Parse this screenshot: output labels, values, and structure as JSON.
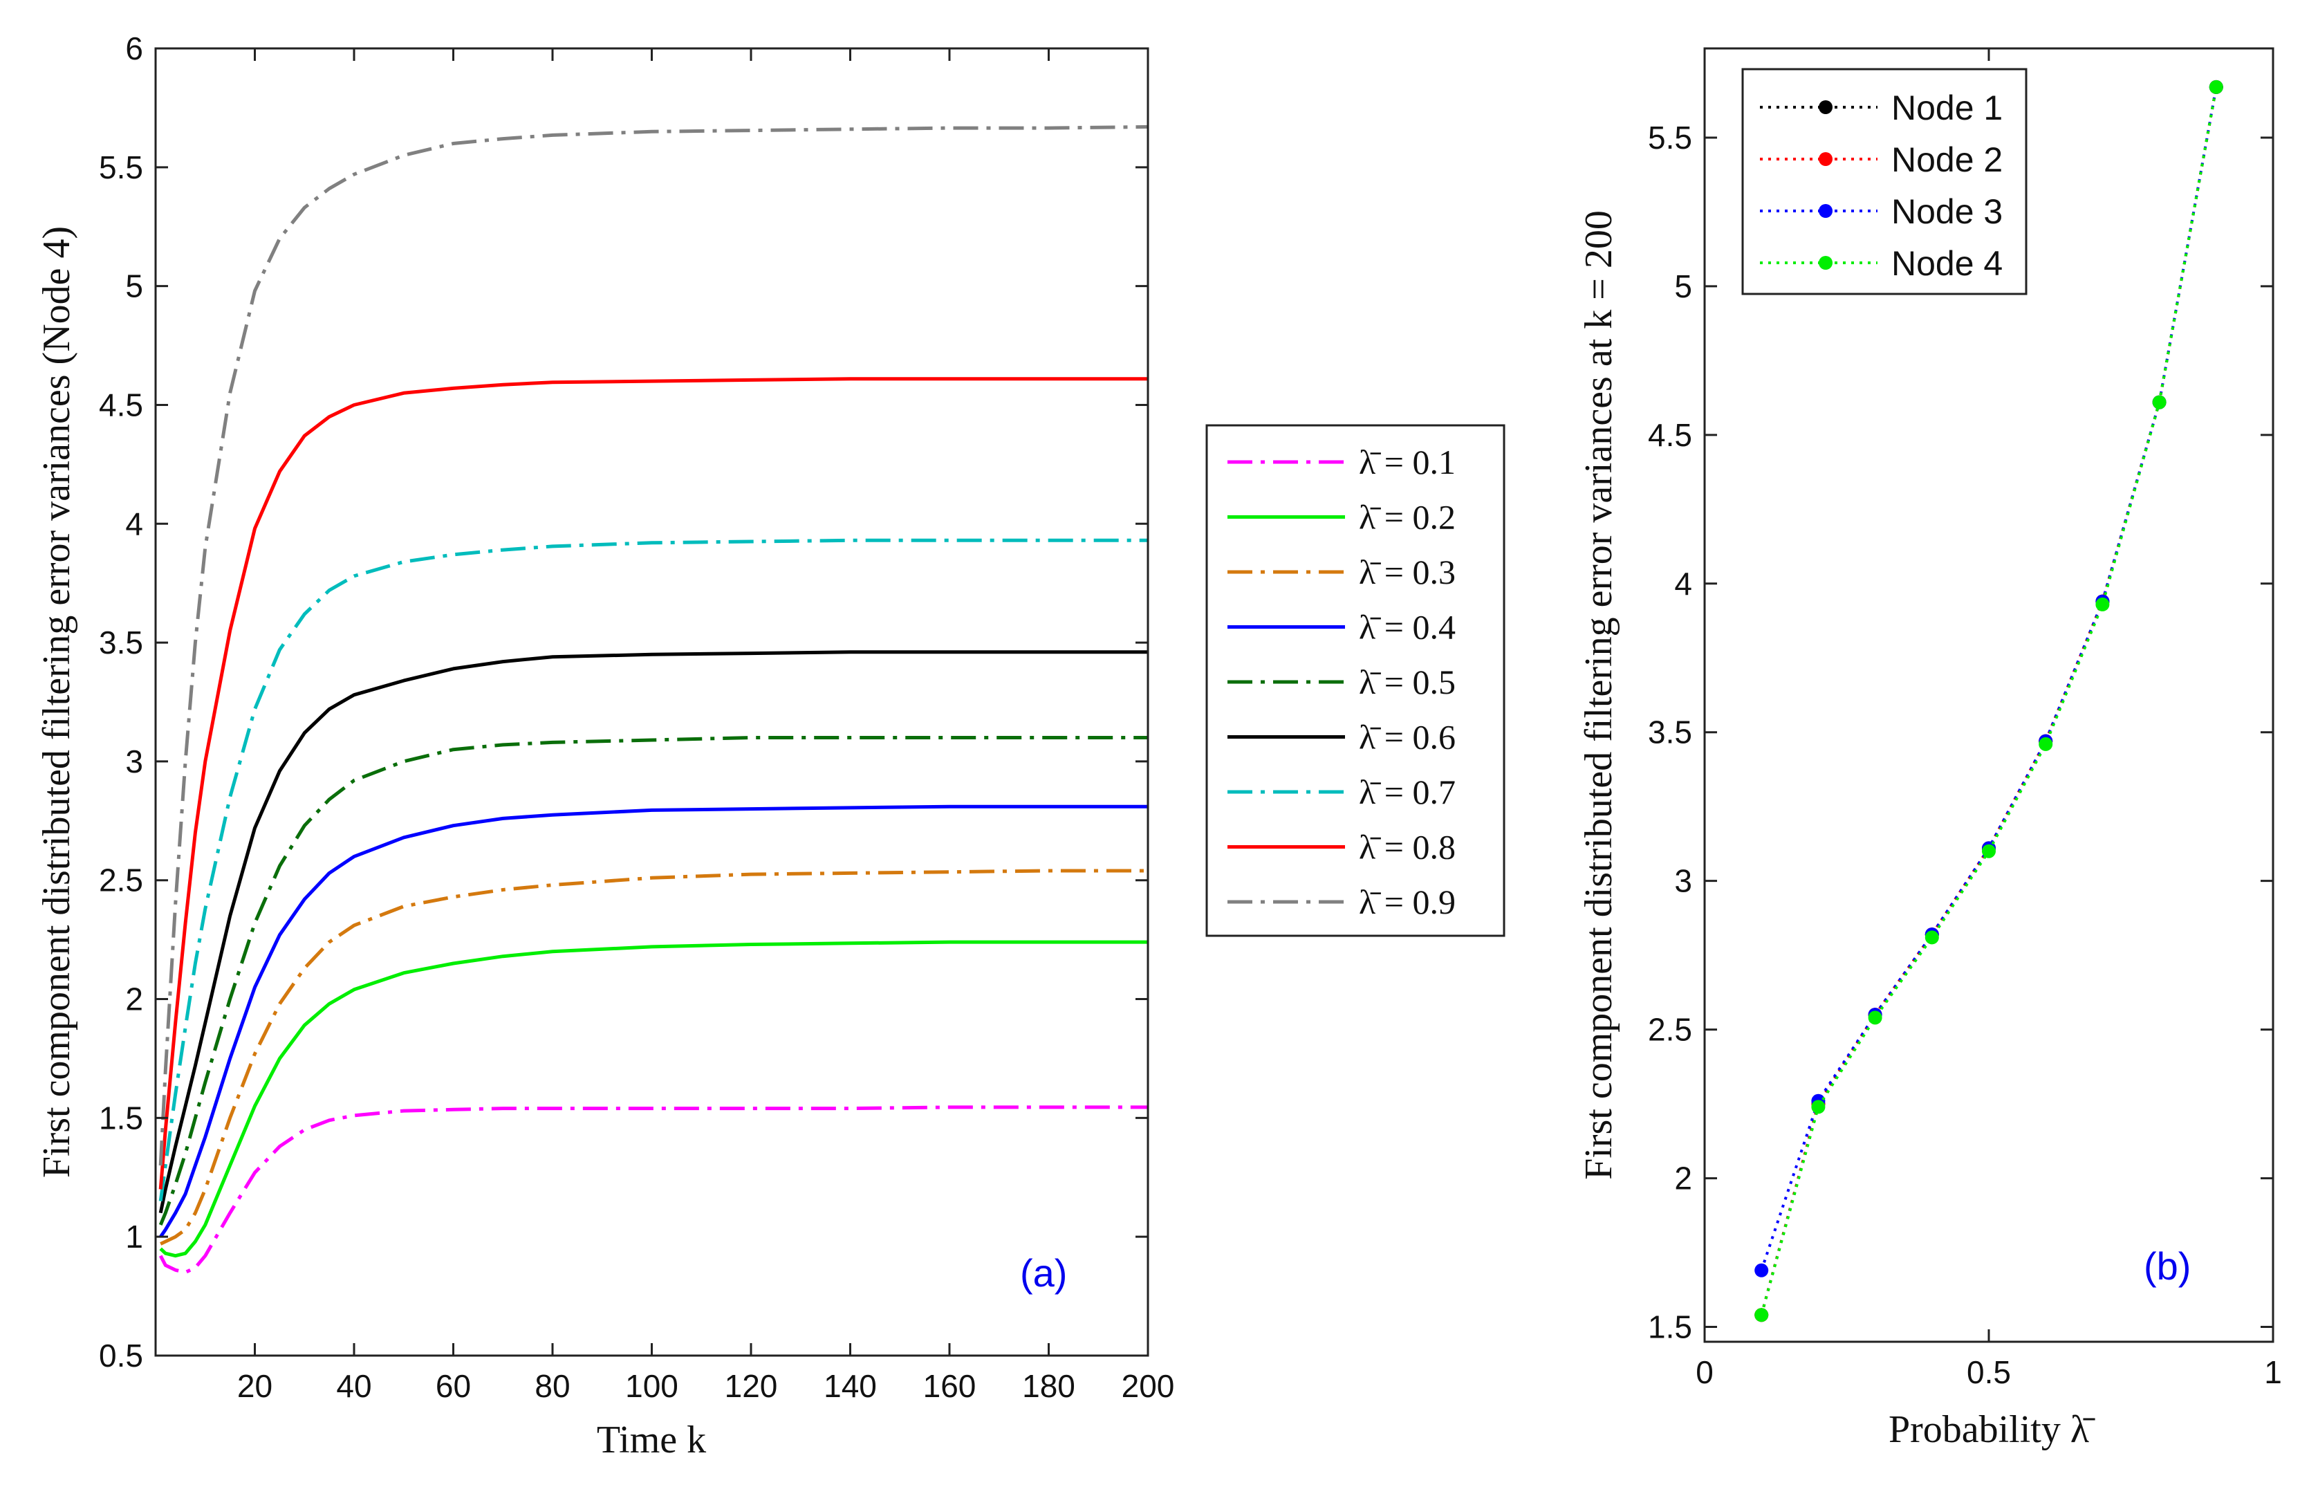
{
  "chart_data": [
    {
      "type": "line",
      "panel_label": "(a)",
      "xlabel": "Time k",
      "ylabel": "First component distributed filtering error variances (Node 4)",
      "xlim": [
        0,
        200
      ],
      "ylim": [
        0.5,
        6
      ],
      "x_ticks": [
        20,
        40,
        60,
        80,
        100,
        120,
        140,
        160,
        180,
        200
      ],
      "y_ticks": [
        0.5,
        1,
        1.5,
        2,
        2.5,
        3,
        3.5,
        4,
        4.5,
        5,
        5.5,
        6
      ],
      "grid": false,
      "legend_position": "outside-right",
      "x": [
        1,
        2,
        4,
        6,
        8,
        10,
        15,
        20,
        25,
        30,
        35,
        40,
        50,
        60,
        70,
        80,
        100,
        120,
        140,
        160,
        180,
        200
      ],
      "series": [
        {
          "name": "λ̄ = 0.1",
          "color": "#ff00ff",
          "dash": "dashdot",
          "values": [
            0.92,
            0.88,
            0.86,
            0.85,
            0.87,
            0.92,
            1.1,
            1.27,
            1.38,
            1.45,
            1.49,
            1.51,
            1.53,
            1.535,
            1.54,
            1.54,
            1.54,
            1.54,
            1.54,
            1.545,
            1.545,
            1.545
          ]
        },
        {
          "name": "λ̄ = 0.2",
          "color": "#00ee00",
          "dash": "solid",
          "values": [
            0.95,
            0.93,
            0.92,
            0.93,
            0.98,
            1.05,
            1.3,
            1.55,
            1.75,
            1.89,
            1.98,
            2.04,
            2.11,
            2.15,
            2.18,
            2.2,
            2.22,
            2.23,
            2.235,
            2.24,
            2.24,
            2.24
          ]
        },
        {
          "name": "λ̄ = 0.3",
          "color": "#d4790e",
          "dash": "dashdot",
          "values": [
            0.97,
            0.98,
            1.0,
            1.03,
            1.1,
            1.2,
            1.5,
            1.77,
            1.98,
            2.13,
            2.24,
            2.31,
            2.39,
            2.43,
            2.46,
            2.48,
            2.51,
            2.525,
            2.53,
            2.535,
            2.54,
            2.54
          ]
        },
        {
          "name": "λ̄ = 0.4",
          "color": "#0000ff",
          "dash": "solid",
          "values": [
            1.0,
            1.03,
            1.1,
            1.18,
            1.3,
            1.42,
            1.75,
            2.05,
            2.27,
            2.42,
            2.53,
            2.6,
            2.68,
            2.73,
            2.76,
            2.775,
            2.795,
            2.8,
            2.805,
            2.81,
            2.81,
            2.81
          ]
        },
        {
          "name": "λ̄ = 0.5",
          "color": "#0a6e0a",
          "dash": "dashdot",
          "values": [
            1.05,
            1.1,
            1.22,
            1.35,
            1.5,
            1.65,
            2.0,
            2.32,
            2.56,
            2.73,
            2.84,
            2.92,
            3.0,
            3.05,
            3.07,
            3.08,
            3.09,
            3.1,
            3.1,
            3.1,
            3.1,
            3.1
          ]
        },
        {
          "name": "λ̄ = 0.6",
          "color": "#000000",
          "dash": "solid",
          "values": [
            1.1,
            1.2,
            1.38,
            1.55,
            1.72,
            1.9,
            2.35,
            2.72,
            2.96,
            3.12,
            3.22,
            3.28,
            3.34,
            3.39,
            3.42,
            3.44,
            3.45,
            3.455,
            3.46,
            3.46,
            3.46,
            3.46
          ]
        },
        {
          "name": "λ̄ = 0.7",
          "color": "#00bcbc",
          "dash": "dashdot",
          "values": [
            1.15,
            1.3,
            1.6,
            1.88,
            2.15,
            2.38,
            2.85,
            3.22,
            3.47,
            3.62,
            3.72,
            3.78,
            3.84,
            3.87,
            3.89,
            3.905,
            3.92,
            3.925,
            3.93,
            3.93,
            3.93,
            3.93
          ]
        },
        {
          "name": "λ̄ = 0.8",
          "color": "#ff0000",
          "dash": "solid",
          "values": [
            1.2,
            1.45,
            1.9,
            2.32,
            2.7,
            3.0,
            3.55,
            3.98,
            4.22,
            4.37,
            4.45,
            4.5,
            4.55,
            4.57,
            4.585,
            4.595,
            4.6,
            4.605,
            4.61,
            4.61,
            4.61,
            4.61
          ]
        },
        {
          "name": "λ̄ = 0.9",
          "color": "#808080",
          "dash": "dashdot",
          "values": [
            1.3,
            1.7,
            2.4,
            3.0,
            3.5,
            3.9,
            4.55,
            4.98,
            5.2,
            5.33,
            5.41,
            5.47,
            5.55,
            5.6,
            5.62,
            5.635,
            5.65,
            5.655,
            5.66,
            5.665,
            5.665,
            5.67
          ]
        }
      ]
    },
    {
      "type": "line",
      "panel_label": "(b)",
      "xlabel": "Probability λ̄",
      "ylabel": "First component distributed filtering error variances at k = 200",
      "xlim": [
        0,
        1
      ],
      "ylim": [
        1.45,
        5.8
      ],
      "x_ticks": [
        0,
        0.5,
        1
      ],
      "y_ticks": [
        1.5,
        2,
        2.5,
        3,
        3.5,
        4,
        4.5,
        5,
        5.5
      ],
      "grid": false,
      "legend_position": "top-left",
      "x": [
        0.1,
        0.2,
        0.3,
        0.4,
        0.5,
        0.6,
        0.7,
        0.8,
        0.9
      ],
      "series": [
        {
          "name": "Node 1",
          "color": "#000000",
          "dash": "dotted",
          "values": [
            1.54,
            2.25,
            2.55,
            2.82,
            3.11,
            3.47,
            3.94,
            4.61,
            5.67
          ]
        },
        {
          "name": "Node 2",
          "color": "#ff0000",
          "dash": "dotted",
          "values": [
            1.54,
            2.25,
            2.55,
            2.82,
            3.11,
            3.47,
            3.94,
            4.61,
            5.67
          ]
        },
        {
          "name": "Node 3",
          "color": "#0000ff",
          "dash": "dotted",
          "values": [
            1.69,
            2.26,
            2.55,
            2.82,
            3.11,
            3.47,
            3.94,
            4.61,
            5.67
          ]
        },
        {
          "name": "Node 4",
          "color": "#00ee00",
          "dash": "dotted",
          "values": [
            1.54,
            2.24,
            2.54,
            2.81,
            3.1,
            3.46,
            3.93,
            4.61,
            5.67
          ]
        }
      ]
    }
  ]
}
